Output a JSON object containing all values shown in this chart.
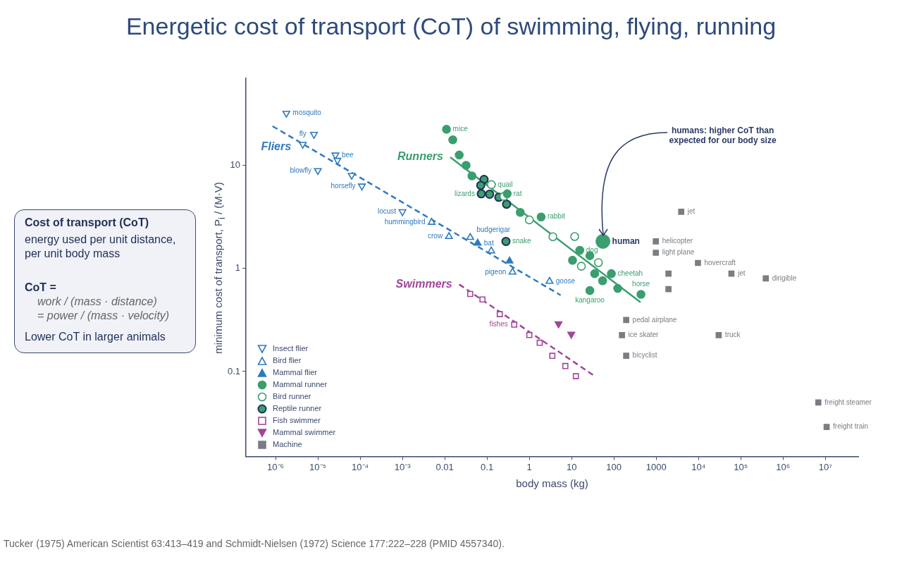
{
  "chart_data": [
    {
      "type": "scatter",
      "title": "Energetic cost of transport (CoT) of swimming, flying, running",
      "xlabel": "body mass (kg)",
      "ylabel": "minimum cost of transport, P$_{i}$ / (M·V)",
      "log": "xy",
      "grid": false,
      "legend": "bottom left",
      "xlim": [
        2e-07,
        60000000.0
      ],
      "ylim": [
        0.015,
        70
      ],
      "xticks": [
        {
          "value": 1e-06,
          "label": "10⁻⁶"
        },
        {
          "value": 1e-05,
          "label": "10⁻⁵"
        },
        {
          "value": 0.0001,
          "label": "10⁻⁴"
        },
        {
          "value": 0.001,
          "label": "10⁻³"
        },
        0.01,
        0.1,
        1,
        10,
        100,
        1000,
        {
          "value": 10000,
          "label": "10⁴"
        },
        {
          "value": 100000,
          "label": "10⁵"
        },
        {
          "value": 1000000,
          "label": "10⁶"
        },
        {
          "value": 10000000,
          "label": "10⁷"
        }
      ],
      "yticks": [
        0.1,
        1,
        10
      ],
      "series": [
        {
          "name": "Insect flier",
          "color": "#2f7abf",
          "marker": "triangle",
          "x": [
            1.8e-06,
            4.4e-06,
            8.1e-06,
            2.6e-05,
            2.9e-05,
            1e-05,
            6.3e-05,
            0.00011,
            0.001
          ],
          "values": [
            32,
            16,
            20,
            12.6,
            11.2,
            8.9,
            8.0,
            6.3,
            3.55
          ]
        },
        {
          "name": "Bird flier",
          "color": "#2f7abf",
          "marker": "triangle",
          "x": [
            0.0049,
            0.0126,
            0.04,
            0.126,
            0.4,
            3.0
          ],
          "values": [
            2.8,
            2.04,
            2.0,
            1.48,
            0.92,
            0.75
          ]
        },
        {
          "name": "Mammal flier",
          "color": "#2f7abf",
          "marker": "triangle",
          "x": [
            0.06,
            0.34
          ],
          "values": [
            1.76,
            1.18
          ]
        },
        {
          "name": "Mammal runner",
          "color": "#3a9e6f",
          "marker": "circle",
          "x": [
            0.011,
            0.0155,
            0.022,
            0.032,
            0.044,
            0.3,
            0.61,
            1.9,
            15.6,
            27,
            10.5,
            35,
            87,
            54,
            123,
            436,
            27
          ],
          "values": [
            22.4,
            17.7,
            12.6,
            10,
            7.9,
            5.3,
            3.5,
            3.16,
            1.5,
            1.33,
            1.2,
            0.89,
            0.89,
            0.76,
            0.64,
            0.56,
            0.61
          ]
        },
        {
          "name": "Bird runner",
          "color": "#3a9e6f",
          "marker": "circle",
          "x": [
            0.127,
            0.25,
            1.0,
            3.6,
            11.8,
            17,
            43
          ],
          "values": [
            6.5,
            5.0,
            2.96,
            2.03,
            2.04,
            1.05,
            1.14
          ]
        },
        {
          "name": "Reptile runner",
          "color": "#3a9e6f",
          "marker": "circle",
          "x": [
            0.085,
            0.071,
            0.073,
            0.115,
            0.19,
            0.29,
            0.28
          ],
          "values": [
            7.3,
            6.4,
            5.3,
            5.25,
            4.9,
            4.2,
            1.83
          ]
        },
        {
          "name": "Fish swimmer",
          "color": "#a0479a",
          "marker": "square",
          "x": [
            0.04,
            0.078,
            0.2,
            0.44,
            1.0,
            1.76,
            3.5,
            7.1,
            12.6
          ],
          "values": [
            0.565,
            0.5,
            0.36,
            0.285,
            0.226,
            0.19,
            0.142,
            0.113,
            0.09
          ]
        },
        {
          "name": "Mammal swimmer",
          "color": "#a0479a",
          "marker": "triangle",
          "x": [
            4.9,
            9.8
          ],
          "values": [
            0.29,
            0.23
          ]
        },
        {
          "name": "Machine",
          "color": "#7a7d82",
          "marker": "square",
          "x": [
            3900,
            980,
            980,
            9700,
            1950,
            60000,
            390000,
            1950,
            195,
            155,
            30000,
            195,
            6800000,
            10700000
          ],
          "values": [
            3.55,
            1.83,
            1.42,
            1.13,
            0.89,
            0.89,
            0.8,
            0.63,
            0.316,
            0.225,
            0.225,
            0.142,
            0.05,
            0.029
          ]
        },
        {
          "type": "bubble",
          "color": "#3a9e6f",
          "x": [
            55
          ],
          "values": [
            1.83
          ],
          "sizes": [
            1
          ]
        },
        {
          "type": "line",
          "name": "Fliers",
          "color": "#2f7abf",
          "marker": "none",
          "line_style": "dashed",
          "x": [
            8.5e-07,
            5.5
          ],
          "values": [
            24,
            0.55
          ]
        },
        {
          "type": "line",
          "name": "Runners",
          "color": "#3a9e6f",
          "marker": "none",
          "line_style": "solid",
          "x": [
            0.0135,
            425
          ],
          "values": [
            12,
            0.47
          ]
        },
        {
          "type": "line",
          "name": "Swimmers",
          "color": "#a0479a",
          "marker": "none",
          "line_style": "dashed",
          "x": [
            0.022,
            37
          ],
          "values": [
            0.7,
            0.089
          ]
        }
      ],
      "annotations": [
        {
          "text": "mosquito",
          "x": 1.8e-06,
          "y": 32
        },
        {
          "text": "fly",
          "x": 4.4e-06,
          "y": 16
        },
        {
          "text": "bee",
          "x": 2.6e-05,
          "y": 12.6
        },
        {
          "text": "blowfly",
          "x": 1e-05,
          "y": 8.9
        },
        {
          "text": "horsefly",
          "x": 0.00011,
          "y": 6.3
        },
        {
          "text": "locust",
          "x": 0.001,
          "y": 3.55
        },
        {
          "text": "hummingbird",
          "x": 0.0049,
          "y": 2.8
        },
        {
          "text": "budgerigar",
          "x": 0.04,
          "y": 2.0
        },
        {
          "text": "crow",
          "x": 0.0126,
          "y": 2.04
        },
        {
          "text": "bat",
          "x": 0.06,
          "y": 1.76
        },
        {
          "text": "pigeon",
          "x": 0.4,
          "y": 0.92
        },
        {
          "text": "goose",
          "x": 3.0,
          "y": 0.75
        },
        {
          "text": "mice",
          "x": 0.011,
          "y": 22.4
        },
        {
          "text": "quail",
          "x": 0.127,
          "y": 6.5
        },
        {
          "text": "rat",
          "x": 0.3,
          "y": 5.3
        },
        {
          "text": "lizards",
          "x": 0.073,
          "y": 5.3
        },
        {
          "text": "rabbit",
          "x": 1.9,
          "y": 3.16
        },
        {
          "text": "snake",
          "x": 0.28,
          "y": 1.83
        },
        {
          "text": "human",
          "x": 55,
          "y": 1.83
        },
        {
          "text": "dog",
          "x": 15.6,
          "y": 1.5
        },
        {
          "text": "cheetah",
          "x": 87,
          "y": 0.89
        },
        {
          "text": "horse",
          "x": 436,
          "y": 0.56
        },
        {
          "text": "kangaroo",
          "x": 27,
          "y": 0.61
        },
        {
          "text": "fishes",
          "x": 0.44,
          "y": 0.285
        },
        {
          "text": "jet",
          "x": 3900,
          "y": 3.55
        },
        {
          "text": "helicopter",
          "x": 980,
          "y": 1.83
        },
        {
          "text": "light plane",
          "x": 980,
          "y": 1.42
        },
        {
          "text": "hovercraft",
          "x": 9700,
          "y": 1.13
        },
        {
          "text": "jet",
          "x": 60000,
          "y": 0.89
        },
        {
          "text": "dirigible",
          "x": 390000,
          "y": 0.8
        },
        {
          "text": "pedal airplane",
          "x": 195,
          "y": 0.316
        },
        {
          "text": "ice skater",
          "x": 155,
          "y": 0.225
        },
        {
          "text": "truck",
          "x": 30000,
          "y": 0.225
        },
        {
          "text": "bicyclist",
          "x": 195,
          "y": 0.142
        },
        {
          "text": "freight steamer",
          "x": 6800000,
          "y": 0.05
        },
        {
          "text": "freight train",
          "x": 10700000,
          "y": 0.029
        },
        {
          "text": "humans: higher CoT than expected for our body size",
          "x": 55,
          "y": 1.83
        },
        "Tucker (1975) American Scientist 63:413–419 and Schmidt-Nielsen (1972) Science 177:222–228 (PMID 4557340)."
      ]
    },
    {
      "type": "other",
      "title": "Cost of transport (CoT)",
      "annotations": [
        "energy used per unit distance, per unit body mass",
        "CoT  =",
        "work / (mass · distance)",
        "=  power / (mass · velocity)",
        "Lower CoT in larger animals"
      ]
    }
  ]
}
